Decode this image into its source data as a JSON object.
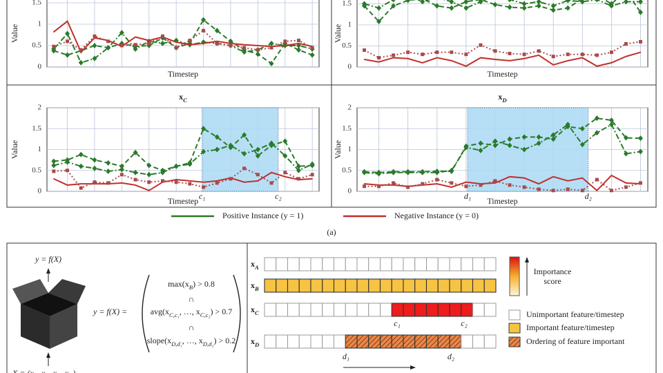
{
  "chart_data": [
    {
      "type": "line",
      "xlabel": "Timestep",
      "ylabel": "Value",
      "xlim": [
        -0.5,
        19.5
      ],
      "ylim": [
        0,
        2
      ],
      "yticks": [
        0,
        0.5,
        1,
        1.5
      ],
      "xgrid": [
        1,
        3,
        5,
        7,
        9,
        11,
        13,
        15,
        17,
        19
      ],
      "grid": true,
      "series": [
        {
          "color": "#2a7a2a",
          "dash": "dashed",
          "marker": "diamond",
          "values": [
            0.38,
            0.28,
            0.38,
            0.5,
            0.45,
            0.55,
            0.48,
            0.5,
            0.68,
            0.45,
            0.55,
            1.1,
            0.85,
            0.6,
            0.4,
            0.3,
            0.08,
            0.55,
            0.4,
            0.28
          ]
        },
        {
          "color": "#2a7a2a",
          "dash": "dashdot",
          "marker": "diamond",
          "values": [
            0.42,
            0.78,
            0.1,
            0.2,
            0.45,
            0.8,
            0.42,
            0.6,
            0.55,
            0.62,
            0.52,
            0.58,
            0.55,
            0.5,
            0.35,
            0.4,
            0.55,
            0.5,
            0.5,
            0.42
          ]
        },
        {
          "color": "#c0302a",
          "dash": "solid",
          "marker": "none",
          "values": [
            0.82,
            1.07,
            0.35,
            0.68,
            0.62,
            0.48,
            0.7,
            0.62,
            0.7,
            0.58,
            0.52,
            0.55,
            0.6,
            0.55,
            0.52,
            0.5,
            0.48,
            0.5,
            0.55,
            0.48
          ]
        },
        {
          "color": "#a84a4a",
          "dash": "dotted",
          "marker": "square",
          "values": [
            0.48,
            0.6,
            0.4,
            0.72,
            0.6,
            0.5,
            0.52,
            0.55,
            0.72,
            0.45,
            0.62,
            0.85,
            0.55,
            0.5,
            0.45,
            0.4,
            0.45,
            0.6,
            0.62,
            0.45
          ]
        }
      ]
    },
    {
      "type": "line",
      "xlabel": "Timestep",
      "ylabel": "Value",
      "xlim": [
        -0.5,
        19.5
      ],
      "ylim": [
        0,
        2
      ],
      "yticks": [
        0,
        0.5,
        1,
        1.5
      ],
      "xgrid": [
        1,
        3,
        5,
        7,
        9,
        11,
        13,
        15,
        17,
        19
      ],
      "grid": true,
      "series": [
        {
          "color": "#2a7a2a",
          "dash": "dashed",
          "marker": "diamond",
          "values": [
            1.45,
            1.08,
            1.45,
            1.58,
            1.62,
            1.45,
            1.4,
            1.55,
            1.6,
            1.48,
            1.42,
            1.4,
            1.45,
            1.35,
            1.4,
            1.62,
            1.7,
            1.5,
            1.8,
            1.3
          ]
        },
        {
          "color": "#2a7a2a",
          "dash": "dashdot",
          "marker": "diamond",
          "values": [
            1.5,
            1.4,
            1.6,
            1.7,
            1.55,
            1.65,
            1.55,
            1.4,
            1.55,
            1.7,
            1.6,
            1.5,
            1.55,
            1.45,
            1.58,
            1.55,
            1.6,
            1.45,
            1.55,
            1.55
          ]
        },
        {
          "color": "#c0302a",
          "dash": "solid",
          "marker": "none",
          "values": [
            0.18,
            0.12,
            0.22,
            0.2,
            0.1,
            0.22,
            0.15,
            0.02,
            0.22,
            0.18,
            0.15,
            0.2,
            0.28,
            0.05,
            0.15,
            0.22,
            0.02,
            0.1,
            0.25,
            0.35
          ]
        },
        {
          "color": "#a84a4a",
          "dash": "dotted",
          "marker": "square",
          "values": [
            0.4,
            0.22,
            0.28,
            0.35,
            0.3,
            0.35,
            0.35,
            0.3,
            0.52,
            0.38,
            0.32,
            0.3,
            0.38,
            0.25,
            0.3,
            0.3,
            0.28,
            0.35,
            0.55,
            0.6
          ]
        }
      ]
    },
    {
      "type": "line",
      "title": [
        "x",
        "C"
      ],
      "xlabel": "Timestep",
      "ylabel": "Value",
      "xlim": [
        -0.5,
        19.5
      ],
      "ylim": [
        0,
        2
      ],
      "yticks": [
        0,
        0.5,
        1,
        1.5,
        2
      ],
      "xgrid": [
        1,
        3,
        5,
        7,
        9,
        11,
        13,
        15,
        17,
        19
      ],
      "grid": true,
      "shade": [
        10.9,
        16.5
      ],
      "shade_labels": [
        "c₁",
        "c₂"
      ],
      "series": [
        {
          "color": "#2a7a2a",
          "dash": "dashed",
          "marker": "diamond",
          "values": [
            0.72,
            0.75,
            0.88,
            0.75,
            0.68,
            0.6,
            0.93,
            0.62,
            0.5,
            0.6,
            0.68,
            1.5,
            1.3,
            1.05,
            1.35,
            0.85,
            1.1,
            1.2,
            0.6,
            0.62
          ]
        },
        {
          "color": "#2a7a2a",
          "dash": "dashdot",
          "marker": "diamond",
          "values": [
            0.62,
            0.7,
            0.6,
            0.55,
            0.48,
            0.52,
            0.45,
            0.4,
            0.45,
            0.6,
            0.65,
            0.95,
            1.0,
            1.1,
            0.9,
            1.0,
            1.15,
            0.85,
            0.5,
            0.65
          ]
        },
        {
          "color": "#c0302a",
          "dash": "solid",
          "marker": "none",
          "values": [
            0.3,
            0.15,
            0.18,
            0.18,
            0.18,
            0.2,
            0.15,
            0.02,
            0.22,
            0.28,
            0.25,
            0.22,
            0.25,
            0.32,
            0.22,
            0.25,
            0.45,
            0.35,
            0.28,
            0.3
          ]
        },
        {
          "color": "#a84a4a",
          "dash": "dotted",
          "marker": "square",
          "values": [
            0.48,
            0.5,
            0.08,
            0.22,
            0.2,
            0.4,
            0.28,
            0.22,
            0.25,
            0.22,
            0.18,
            0.1,
            0.2,
            0.3,
            0.55,
            0.4,
            0.2,
            0.45,
            0.3,
            0.4
          ]
        }
      ]
    },
    {
      "type": "line",
      "title": [
        "x",
        "D"
      ],
      "xlabel": "Timestep",
      "ylabel": "Value",
      "xlim": [
        -0.5,
        19.5
      ],
      "ylim": [
        0,
        2
      ],
      "yticks": [
        0,
        0.5,
        1,
        1.5,
        2
      ],
      "xgrid": [
        1,
        3,
        5,
        7,
        9,
        11,
        13,
        15,
        17,
        19
      ],
      "grid": true,
      "shade": [
        7.1,
        15.4
      ],
      "shade_labels": [
        "d₁",
        "d₂"
      ],
      "series": [
        {
          "color": "#2a7a2a",
          "dash": "dashed",
          "marker": "diamond",
          "values": [
            0.47,
            0.45,
            0.47,
            0.47,
            0.47,
            0.48,
            0.48,
            1.08,
            1.15,
            1.1,
            1.25,
            1.3,
            1.3,
            1.25,
            1.55,
            1.5,
            1.75,
            1.7,
            1.28,
            1.27
          ]
        },
        {
          "color": "#2a7a2a",
          "dash": "dashdot",
          "marker": "diamond",
          "values": [
            0.45,
            0.42,
            0.45,
            0.45,
            0.45,
            0.45,
            0.5,
            1.05,
            0.98,
            1.2,
            1.1,
            1.0,
            1.15,
            1.35,
            1.6,
            1.12,
            1.4,
            1.6,
            0.9,
            0.95
          ]
        },
        {
          "color": "#c0302a",
          "dash": "solid",
          "marker": "none",
          "values": [
            0.18,
            0.15,
            0.15,
            0.12,
            0.15,
            0.18,
            0.1,
            0.22,
            0.18,
            0.2,
            0.35,
            0.32,
            0.18,
            0.35,
            0.25,
            0.32,
            0.02,
            0.38,
            0.2,
            0.18
          ]
        },
        {
          "color": "#a84a4a",
          "dash": "dotted",
          "marker": "square",
          "values": [
            0.12,
            0.12,
            0.2,
            0.1,
            0.18,
            0.28,
            0.2,
            0.12,
            0.15,
            0.25,
            0.15,
            0.1,
            0.05,
            0.02,
            0.05,
            0.02,
            0.28,
            0.02,
            0.1,
            0.2
          ]
        }
      ]
    }
  ],
  "legend": [
    {
      "label": "Positive Instance (y = 1)",
      "color": "#2a7a2a"
    },
    {
      "label": "Negative Instance (y = 0)",
      "color": "#c0302a"
    }
  ],
  "caption": "(a)",
  "diagram": {
    "output": "y = f(X)",
    "input": [
      "X = (x",
      "A",
      ", x",
      "B",
      ", x",
      "C",
      ", x",
      "D",
      ")"
    ],
    "function": "y = f(X) =",
    "conditions": [
      [
        "max(x",
        "B",
        ") > 0.8"
      ],
      [
        "avg(x",
        "C,c₁",
        ", …, x",
        "C,c₂",
        ") > 0.7"
      ],
      [
        "slope(x",
        "D,d₁",
        ", …, x",
        "D,d₂",
        ") > 0.2"
      ]
    ],
    "intersection": "∩",
    "rows": [
      [
        "x",
        "A"
      ],
      [
        "x",
        "B"
      ],
      [
        "x",
        "C"
      ],
      [
        "x",
        "D"
      ]
    ],
    "c_labels": [
      "c₁",
      "c₂"
    ],
    "d_labels": [
      "d₁",
      "d₂"
    ],
    "importance": [
      "Importance",
      "score"
    ],
    "key": [
      "Unimportant feature/timestep",
      "Important feature/timestep",
      "Ordering of feature important"
    ]
  }
}
